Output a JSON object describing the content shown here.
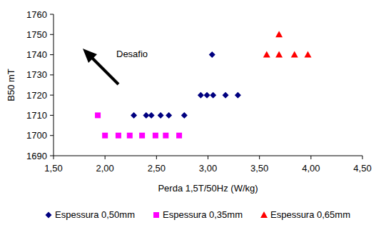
{
  "chart_data": {
    "type": "scatter",
    "x_label": "Perda 1,5T/50Hz (W/kg)",
    "y_label": "B50 mT",
    "annotation": "Desafio",
    "xlim": [
      1.5,
      4.5
    ],
    "xticks": [
      {
        "value": 1.5,
        "label": "1,50"
      },
      {
        "value": 2.0,
        "label": "2,00"
      },
      {
        "value": 2.5,
        "label": "2,50"
      },
      {
        "value": 3.0,
        "label": "3,00"
      },
      {
        "value": 3.5,
        "label": "3,50"
      },
      {
        "value": 4.0,
        "label": "4,00"
      },
      {
        "value": 4.5,
        "label": "4,50"
      }
    ],
    "ylim": [
      1690,
      1760
    ],
    "yticks": [
      1690,
      1700,
      1710,
      1720,
      1730,
      1740,
      1750,
      1760
    ],
    "grid": false,
    "legend": "bottom",
    "series": [
      {
        "name": "Espessura 0,50mm",
        "color": "#000080",
        "marker": "diamond",
        "x": [
          2.28,
          2.4,
          2.45,
          2.54,
          2.62,
          2.77,
          2.93,
          2.99,
          3.05,
          3.17,
          3.29,
          3.04
        ],
        "values": [
          1710,
          1710,
          1710,
          1710,
          1710,
          1710,
          1720,
          1720,
          1720,
          1720,
          1720,
          1740
        ]
      },
      {
        "name": "Espessura 0,35mm",
        "color": "#ff00ff",
        "marker": "square",
        "x": [
          1.93,
          2.0,
          2.13,
          2.24,
          2.36,
          2.49,
          2.59,
          2.72
        ],
        "values": [
          1710,
          1700,
          1700,
          1700,
          1700,
          1700,
          1700,
          1700
        ]
      },
      {
        "name": "Espessura 0,65mm",
        "color": "#ff0000",
        "marker": "triangle",
        "x": [
          3.57,
          3.69,
          3.69,
          3.84,
          3.97
        ],
        "values": [
          1740,
          1750,
          1740,
          1740,
          1740
        ]
      }
    ]
  }
}
